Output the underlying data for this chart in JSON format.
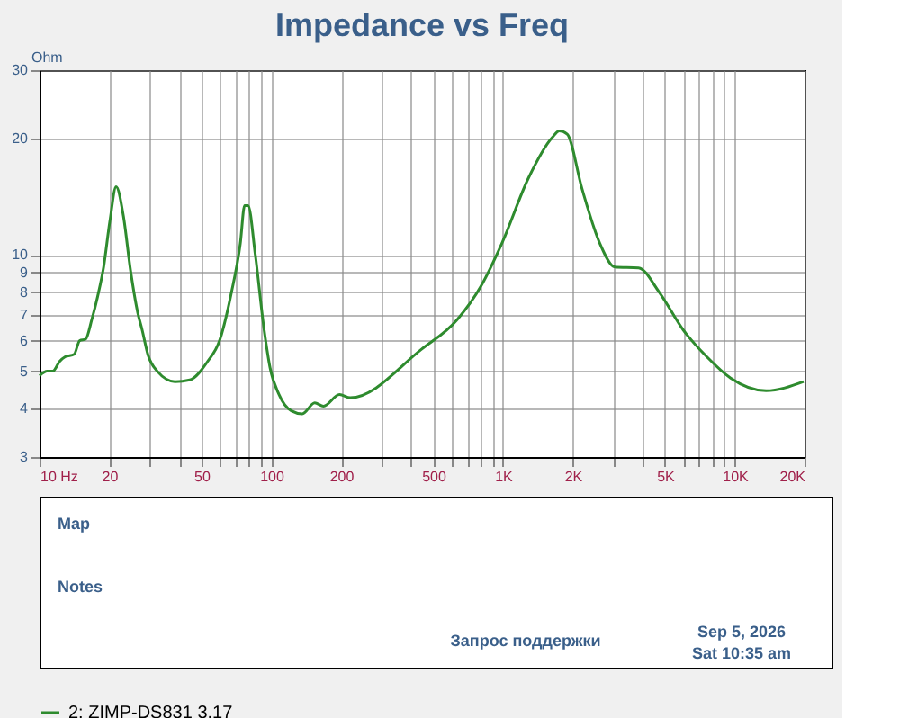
{
  "chart_data": {
    "type": "line",
    "title": "Impedance vs Freq",
    "ylabel": "Ohm",
    "x": [
      10,
      10.8,
      11.4,
      12.2,
      12.9,
      14.1,
      14.9,
      15.8,
      16.8,
      17.8,
      18.9,
      20.1,
      21.4,
      23.0,
      24.7,
      26.5,
      27.7,
      29.4,
      32.2,
      38.4,
      44.5,
      53.1,
      59.8,
      67.3,
      73.5,
      76.7,
      79.4,
      85.3,
      93.1,
      98.8,
      108,
      122,
      136,
      154,
      168,
      197,
      219,
      445,
      634,
      803,
      988,
      1288,
      1631,
      1751,
      1892,
      2192,
      2617,
      3034,
      3844,
      4722,
      5984,
      7573,
      9593,
      13650,
      19800
    ],
    "series": [
      {
        "name": "2: ZIMP-DS831   3.17",
        "color": "#2e8b2e",
        "values": [
          4.87,
          5.0,
          5.0,
          5.3,
          5.45,
          5.53,
          6.0,
          6.05,
          6.8,
          7.8,
          9.3,
          12.2,
          15.0,
          12.6,
          9.1,
          7.1,
          6.4,
          5.5,
          5.0,
          4.7,
          4.75,
          5.3,
          6.0,
          8.0,
          10.7,
          13.4,
          13.4,
          10.0,
          6.4,
          5.1,
          4.35,
          3.95,
          3.88,
          4.14,
          4.06,
          4.35,
          4.27,
          5.7,
          6.8,
          8.3,
          10.7,
          15.8,
          20.1,
          20.9,
          20.5,
          14.8,
          10.7,
          9.3,
          9.25,
          8.0,
          6.4,
          5.45,
          4.8,
          4.45,
          4.7
        ]
      }
    ],
    "log": "xy",
    "xlim": [
      10,
      20000
    ],
    "ylim": [
      3,
      30
    ],
    "xticks": [
      {
        "value": 10,
        "label": "10  Hz"
      },
      {
        "value": 20,
        "label": "20"
      },
      {
        "value": 30,
        "label": null
      },
      {
        "value": 40,
        "label": null
      },
      {
        "value": 50,
        "label": "50"
      },
      {
        "value": 60,
        "label": null
      },
      {
        "value": 70,
        "label": null
      },
      {
        "value": 80,
        "label": null
      },
      {
        "value": 90,
        "label": null
      },
      {
        "value": 100,
        "label": "100"
      },
      {
        "value": 200,
        "label": "200"
      },
      {
        "value": 300,
        "label": null
      },
      {
        "value": 400,
        "label": null
      },
      {
        "value": 500,
        "label": "500"
      },
      {
        "value": 600,
        "label": null
      },
      {
        "value": 700,
        "label": null
      },
      {
        "value": 800,
        "label": null
      },
      {
        "value": 900,
        "label": null
      },
      {
        "value": 1000,
        "label": "1K"
      },
      {
        "value": 2000,
        "label": "2K"
      },
      {
        "value": 3000,
        "label": null
      },
      {
        "value": 4000,
        "label": null
      },
      {
        "value": 5000,
        "label": "5K"
      },
      {
        "value": 6000,
        "label": null
      },
      {
        "value": 7000,
        "label": null
      },
      {
        "value": 8000,
        "label": null
      },
      {
        "value": 9000,
        "label": null
      },
      {
        "value": 10000,
        "label": "10K"
      },
      {
        "value": 20000,
        "label": "20K"
      }
    ],
    "yticks": [
      3,
      4,
      5,
      6,
      7,
      8,
      9,
      10,
      20,
      30
    ],
    "grid": true,
    "legend": "bottom",
    "annotations": [
      "Map",
      "Notes",
      "Запрос поддержки",
      "Sep 5, 2026",
      "Sat 10:35 am"
    ]
  }
}
